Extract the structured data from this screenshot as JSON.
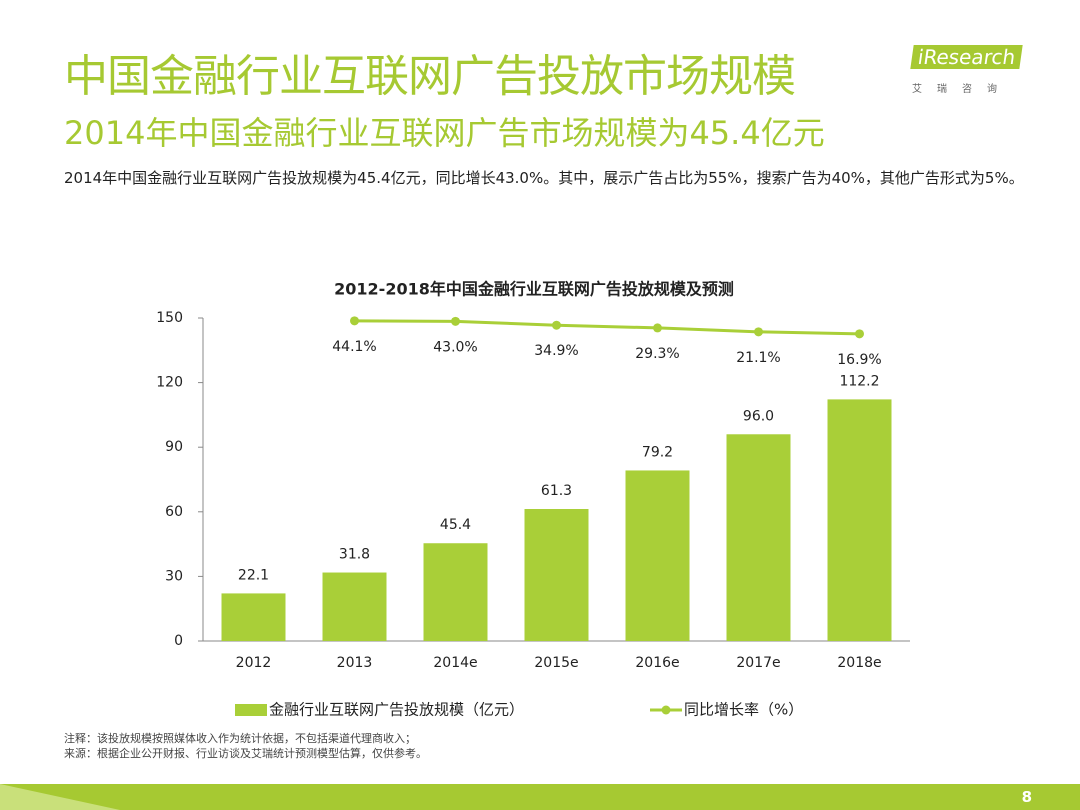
{
  "header": {
    "title": "中国金融行业互联网广告投放市场规模",
    "subtitle": "2014年中国金融行业互联网广告市场规模为45.4亿元",
    "summary": "2014年中国金融行业互联网广告投放规模为45.4亿元，同比增长43.0%。其中，展示广告占比为55%，搜索广告为40%，其他广告形式为5%。"
  },
  "logo": {
    "brand": "iResearch",
    "tagline": "艾瑞咨询"
  },
  "chart_data": {
    "type": "bar",
    "title": "2012-2018年中国金融行业互联网广告投放规模及预测",
    "categories": [
      "2012",
      "2013",
      "2014e",
      "2015e",
      "2016e",
      "2017e",
      "2018e"
    ],
    "series": [
      {
        "name": "金融行业互联网广告投放规模（亿元）",
        "color": "#a9cf38",
        "values": [
          22.1,
          31.8,
          45.4,
          61.3,
          79.2,
          96.0,
          112.2
        ],
        "value_labels": [
          "22.1",
          "31.8",
          "45.4",
          "61.3",
          "79.2",
          "96.0",
          "112.2"
        ]
      },
      {
        "name": "同比增长率（%）",
        "type": "line",
        "axis": "y2",
        "color": "#a9cf38",
        "values": [
          null,
          44.1,
          43.0,
          34.9,
          29.3,
          21.1,
          16.9
        ],
        "value_labels": [
          null,
          "44.1%",
          "43.0%",
          "34.9%",
          "29.3%",
          "21.1%",
          "16.9%"
        ]
      }
    ],
    "ylim": [
      0,
      150
    ],
    "yticks": [
      0,
      30,
      60,
      90,
      120,
      150
    ],
    "y2lim": [
      -625,
      50
    ],
    "legend": "bottom"
  },
  "notes": [
    "注释：该投放规模按照媒体收入作为统计依据，不包括渠道代理商收入；",
    "来源：根据企业公开财报、行业访谈及艾瑞统计预测模型估算，仅供参考。"
  ],
  "page_number": 8
}
